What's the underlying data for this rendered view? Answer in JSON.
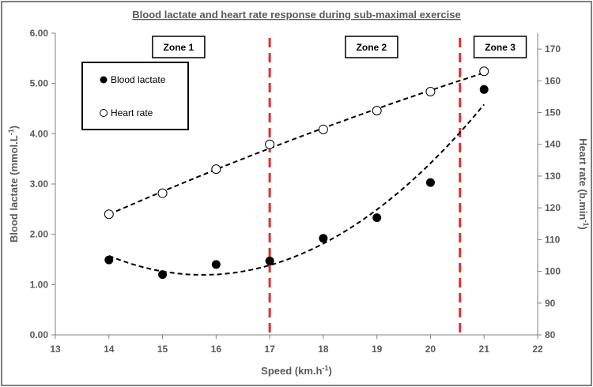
{
  "chart_data": {
    "type": "scatter",
    "title": "Blood lactate and heart rate response during sub-maximal exercise",
    "xlabel": "Speed (km.h-1)",
    "ylabel_left": "Blood lactate (mmol.L-1)",
    "ylabel_right": "Heart rate (b.min-1)",
    "xlim": [
      13,
      22
    ],
    "ylim_left": [
      0,
      6
    ],
    "ylim_right": [
      80,
      175
    ],
    "x_ticks": [
      "13",
      "14",
      "15",
      "16",
      "17",
      "18",
      "19",
      "20",
      "21",
      "22"
    ],
    "y_left_ticks": [
      "0.00",
      "1.00",
      "2.00",
      "3.00",
      "4.00",
      "5.00",
      "6.00"
    ],
    "y_right_ticks": [
      "80",
      "90",
      "100",
      "110",
      "120",
      "130",
      "140",
      "150",
      "160",
      "170"
    ],
    "grid": false,
    "legend_position": "top-left",
    "series": [
      {
        "name": "Blood lactate",
        "axis": "left",
        "marker": "filled-circle",
        "x": [
          14,
          15,
          16,
          17,
          18,
          19,
          20,
          21
        ],
        "y": [
          1.49,
          1.2,
          1.4,
          1.47,
          1.92,
          2.33,
          3.03,
          4.88
        ]
      },
      {
        "name": "Heart rate",
        "axis": "right",
        "marker": "open-circle",
        "x": [
          14,
          15,
          16,
          17,
          18,
          19,
          20,
          21
        ],
        "y": [
          118,
          124.6,
          132.2,
          140,
          144.7,
          150.6,
          156.6,
          163
        ]
      }
    ],
    "zones": [
      {
        "label": "Zone 1"
      },
      {
        "label": "Zone 2"
      },
      {
        "label": "Zone 3"
      }
    ],
    "zone_boundaries": [
      17,
      20.55
    ],
    "zone_label_x": [
      15.3,
      18.9,
      21.3
    ],
    "colors": {
      "boundary": "#e03030",
      "trend": "#000000",
      "axis": "#808080"
    }
  }
}
